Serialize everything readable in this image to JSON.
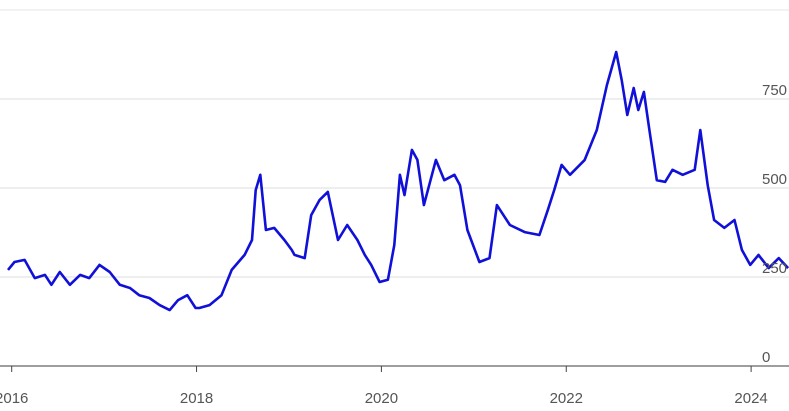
{
  "chart_data": {
    "type": "line",
    "x": [
      2015.96,
      2016.03,
      2016.14,
      2016.25,
      2016.36,
      2016.43,
      2016.52,
      2016.63,
      2016.74,
      2016.84,
      2016.95,
      2017.06,
      2017.17,
      2017.28,
      2017.38,
      2017.49,
      2017.6,
      2017.71,
      2017.8,
      2017.9,
      2017.99,
      2018.03,
      2018.14,
      2018.27,
      2018.38,
      2018.52,
      2018.6,
      2018.64,
      2018.69,
      2018.75,
      2018.84,
      2018.95,
      2019.03,
      2019.06,
      2019.17,
      2019.24,
      2019.33,
      2019.42,
      2019.53,
      2019.63,
      2019.74,
      2019.82,
      2019.89,
      2019.98,
      2020.07,
      2020.14,
      2020.2,
      2020.25,
      2020.33,
      2020.39,
      2020.46,
      2020.59,
      2020.68,
      2020.79,
      2020.85,
      2020.93,
      2021.06,
      2021.17,
      2021.25,
      2021.39,
      2021.55,
      2021.71,
      2021.8,
      2021.87,
      2021.95,
      2022.04,
      2022.2,
      2022.33,
      2022.44,
      2022.54,
      2022.6,
      2022.66,
      2022.73,
      2022.78,
      2022.84,
      2022.9,
      2022.98,
      2023.07,
      2023.15,
      2023.26,
      2023.39,
      2023.45,
      2023.53,
      2023.6,
      2023.71,
      2023.82,
      2023.9,
      2023.99,
      2024.08,
      2024.19,
      2024.3,
      2024.4
    ],
    "series": [
      {
        "color": "#1010d8",
        "values": [
          270,
          292,
          298,
          247,
          256,
          228,
          264,
          228,
          256,
          247,
          284,
          264,
          228,
          219,
          199,
          191,
          171,
          157,
          185,
          199,
          163,
          163,
          171,
          199,
          270,
          312,
          354,
          494,
          537,
          382,
          388,
          354,
          326,
          312,
          303,
          424,
          466,
          489,
          354,
          396,
          354,
          312,
          284,
          236,
          242,
          340,
          537,
          480,
          607,
          579,
          452,
          579,
          522,
          537,
          508,
          382,
          292,
          303,
          452,
          396,
          376,
          368,
          438,
          494,
          565,
          537,
          579,
          663,
          789,
          882,
          803,
          705,
          781,
          719,
          770,
          663,
          522,
          517,
          551,
          537,
          551,
          663,
          508,
          410,
          388,
          410,
          326,
          284,
          312,
          275,
          303,
          275
        ]
      }
    ],
    "xlim": [
      2015.96,
      2024.41
    ],
    "xticks": [
      2016,
      2018,
      2020,
      2022,
      2024
    ],
    "ylim": [
      0,
      1000
    ],
    "yticks": [
      0,
      250,
      500,
      750
    ],
    "grid": true
  }
}
